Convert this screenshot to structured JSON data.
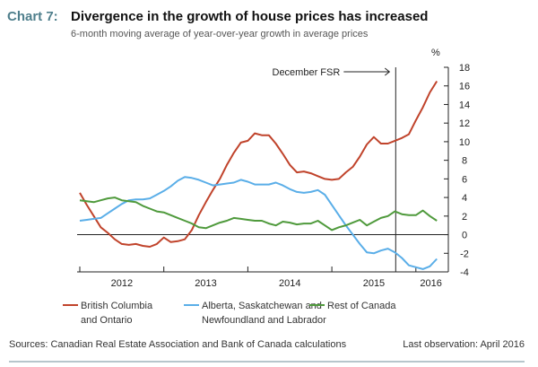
{
  "chart_label": "Chart 7:",
  "chart_data": {
    "type": "line",
    "title": "Divergence in the growth of house prices has increased",
    "subtitle": "6-month moving average of year-over-year growth in average prices",
    "ylabel": "%",
    "ylim": [
      -4,
      18
    ],
    "yticks": [
      -4,
      -2,
      0,
      2,
      4,
      6,
      8,
      10,
      12,
      14,
      16,
      18
    ],
    "xlim": [
      2011.99,
      2016.3
    ],
    "xticks": [
      2012,
      2013,
      2014,
      2015,
      2016
    ],
    "xtick_labels": [
      {
        "x": 2012.5,
        "label": "2012"
      },
      {
        "x": 2013.5,
        "label": "2013"
      },
      {
        "x": 2014.5,
        "label": "2014"
      },
      {
        "x": 2015.5,
        "label": "2015"
      },
      {
        "x": 2016.18,
        "label": "2016"
      }
    ],
    "x_start": 2012.0,
    "x_step_months": 1,
    "grid": false,
    "annotation": {
      "label": "December FSR",
      "x": 2015.76
    },
    "legend_position": "bottom",
    "series": [
      {
        "name": "British Columbia and Ontario",
        "name_lines": [
          "British Columbia",
          "and Ontario"
        ],
        "color": "#c0432b",
        "values": [
          4.5,
          3.2,
          2.0,
          0.8,
          0.2,
          -0.5,
          -1.0,
          -1.1,
          -1.0,
          -1.2,
          -1.3,
          -1.0,
          -0.3,
          -0.8,
          -0.7,
          -0.5,
          0.5,
          2.1,
          3.5,
          4.8,
          6.0,
          7.5,
          8.8,
          9.9,
          10.1,
          10.9,
          10.7,
          10.7,
          9.8,
          8.7,
          7.5,
          6.7,
          6.8,
          6.6,
          6.3,
          6.0,
          5.9,
          6.0,
          6.7,
          7.3,
          8.4,
          9.7,
          10.5,
          9.8,
          9.8,
          10.1,
          10.4,
          10.8,
          12.3,
          13.7,
          15.3,
          16.5
        ]
      },
      {
        "name": "Alberta, Saskatchewan and Newfoundland and Labrador",
        "name_lines": [
          "Alberta, Saskatchewan and",
          "Newfoundland and Labrador"
        ],
        "color": "#5aaee8",
        "values": [
          1.5,
          1.6,
          1.7,
          1.8,
          2.3,
          2.8,
          3.3,
          3.7,
          3.8,
          3.8,
          3.9,
          4.3,
          4.7,
          5.2,
          5.8,
          6.2,
          6.1,
          5.9,
          5.6,
          5.3,
          5.4,
          5.5,
          5.6,
          5.9,
          5.7,
          5.4,
          5.4,
          5.4,
          5.6,
          5.3,
          4.9,
          4.6,
          4.5,
          4.6,
          4.8,
          4.3,
          3.2,
          2.1,
          1.0,
          0.0,
          -1.0,
          -1.9,
          -2.0,
          -1.7,
          -1.5,
          -1.9,
          -2.5,
          -3.3,
          -3.5,
          -3.7,
          -3.4,
          -2.6
        ]
      },
      {
        "name": "Rest of Canada",
        "name_lines": [
          "Rest of Canada"
        ],
        "color": "#4f9a3c",
        "values": [
          3.7,
          3.6,
          3.5,
          3.7,
          3.9,
          4.0,
          3.7,
          3.6,
          3.5,
          3.1,
          2.8,
          2.5,
          2.4,
          2.1,
          1.8,
          1.5,
          1.2,
          0.8,
          0.7,
          1.0,
          1.3,
          1.5,
          1.8,
          1.7,
          1.6,
          1.5,
          1.5,
          1.2,
          1.0,
          1.4,
          1.3,
          1.1,
          1.2,
          1.2,
          1.5,
          1.0,
          0.5,
          0.8,
          1.0,
          1.3,
          1.6,
          1.0,
          1.4,
          1.8,
          2.0,
          2.5,
          2.2,
          2.1,
          2.1,
          2.6,
          2.0,
          1.5
        ]
      }
    ]
  },
  "footer": {
    "sources": "Sources: Canadian Real Estate Association and Bank of Canada calculations",
    "last_observation": "Last observation: April 2016"
  },
  "colors": {
    "label": "#4f7f8c",
    "rule": "#6f8c99",
    "axis": "#222222"
  }
}
